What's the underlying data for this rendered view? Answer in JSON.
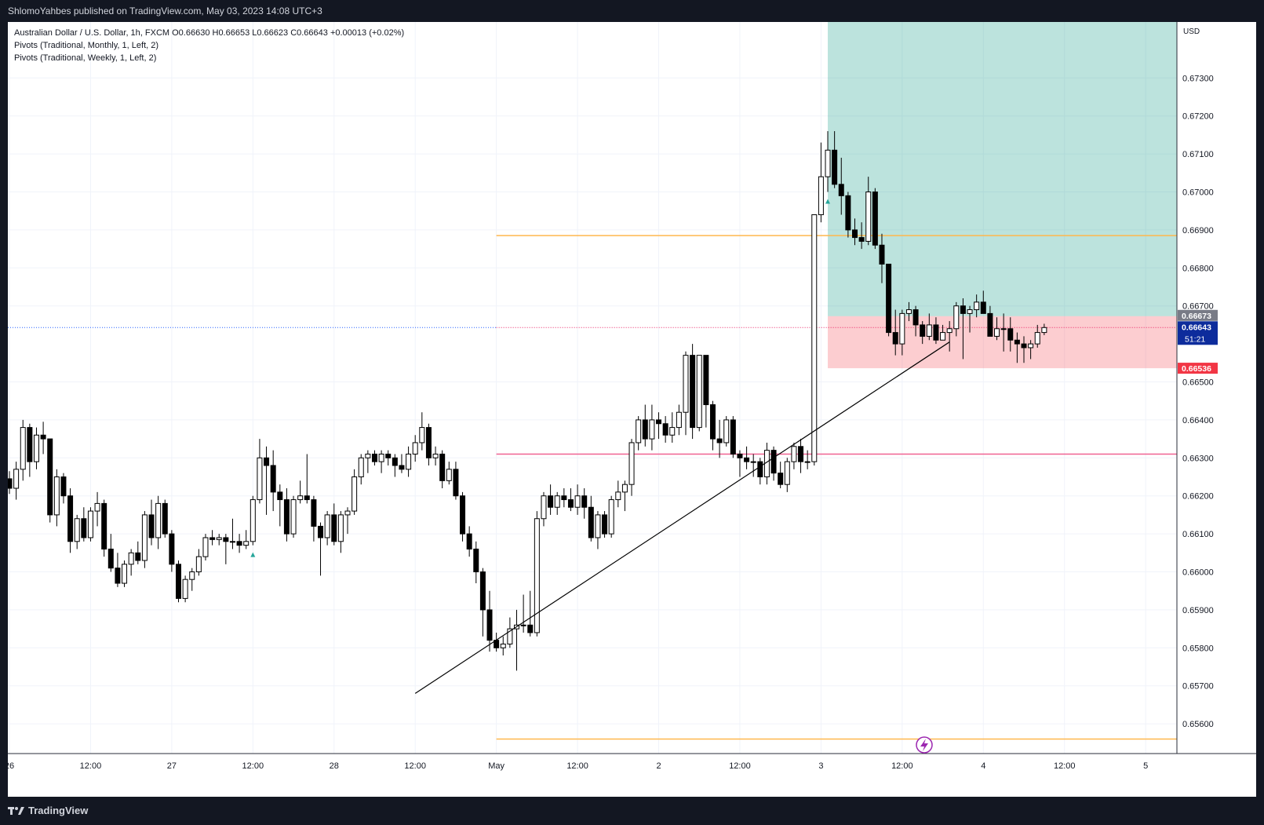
{
  "header": {
    "publisher": "ShlomoYahbes published on TradingView.com, May 03, 2023 14:08 UTC+3"
  },
  "legend": {
    "symbol_line": "Australian Dollar / U.S. Dollar, 1h, FXCM  O0.66630  H0.66653  L0.66623  C0.66643  +0.00013 (+0.02%)",
    "pivots_monthly": "Pivots (Traditional, Monthly, 1, Left, 2)",
    "pivots_weekly": "Pivots (Traditional, Weekly, 1, Left, 2)"
  },
  "footer": {
    "brand": "TradingView"
  },
  "chart_data": {
    "type": "candlestick",
    "symbol": "AUDUSD",
    "timeframe": "1h",
    "currency_label": "USD",
    "ylim": [
      0.6552,
      0.674
    ],
    "y_ticks": [
      "0.67300",
      "0.67200",
      "0.67100",
      "0.67000",
      "0.66900",
      "0.66800",
      "0.66700",
      "0.66500",
      "0.66400",
      "0.66300",
      "0.66200",
      "0.66100",
      "0.66000",
      "0.65900",
      "0.65800",
      "0.65700",
      "0.65600"
    ],
    "x_ticks": [
      "26",
      "12:00",
      "27",
      "12:00",
      "28",
      "12:00",
      "May",
      "12:00",
      "2",
      "12:00",
      "3",
      "12:00",
      "4",
      "12:00",
      "5"
    ],
    "price_labels": {
      "target_top": "0.66673",
      "current": "0.66643",
      "countdown": "51:21",
      "stop": "0.66536"
    },
    "levels": {
      "pivot_orange_upper": 0.66885,
      "pivot_pink": 0.6631,
      "pivot_orange_lower": 0.6556,
      "current_price": 0.66643
    },
    "position": {
      "type": "long",
      "entry": 0.66673,
      "stop": 0.66536,
      "target": 0.674,
      "start_index": 121,
      "end_index": 200
    },
    "trendline": {
      "from_index": 60,
      "from_price": 0.6568,
      "to_index": 139,
      "to_price": 0.66605
    },
    "signal_markers": [
      36,
      121
    ],
    "candles": [
      [
        0.66245,
        0.66265,
        0.66205,
        0.6622
      ],
      [
        0.6622,
        0.6629,
        0.6619,
        0.6627
      ],
      [
        0.6627,
        0.664,
        0.6624,
        0.6638
      ],
      [
        0.6638,
        0.6639,
        0.6625,
        0.6629
      ],
      [
        0.6629,
        0.6638,
        0.6627,
        0.6636
      ],
      [
        0.6636,
        0.66395,
        0.6631,
        0.6635
      ],
      [
        0.6635,
        0.6635,
        0.6613,
        0.6615
      ],
      [
        0.6615,
        0.6627,
        0.6612,
        0.6625
      ],
      [
        0.6625,
        0.6626,
        0.6618,
        0.662
      ],
      [
        0.662,
        0.6622,
        0.6605,
        0.6608
      ],
      [
        0.6608,
        0.6615,
        0.6606,
        0.6614
      ],
      [
        0.6614,
        0.6617,
        0.6608,
        0.6609
      ],
      [
        0.6609,
        0.6617,
        0.6608,
        0.6616
      ],
      [
        0.6616,
        0.6621,
        0.6612,
        0.6618
      ],
      [
        0.6618,
        0.6619,
        0.6604,
        0.6606
      ],
      [
        0.6606,
        0.661,
        0.66,
        0.6601
      ],
      [
        0.6601,
        0.6605,
        0.6596,
        0.6597
      ],
      [
        0.6597,
        0.6603,
        0.6596,
        0.6602
      ],
      [
        0.6602,
        0.6606,
        0.6599,
        0.6605
      ],
      [
        0.6605,
        0.6608,
        0.6602,
        0.6603
      ],
      [
        0.6603,
        0.6616,
        0.6601,
        0.6615
      ],
      [
        0.6615,
        0.6619,
        0.6607,
        0.6609
      ],
      [
        0.6609,
        0.662,
        0.6606,
        0.6618
      ],
      [
        0.6618,
        0.6619,
        0.6609,
        0.661
      ],
      [
        0.661,
        0.6611,
        0.66,
        0.6602
      ],
      [
        0.6602,
        0.6603,
        0.6592,
        0.6593
      ],
      [
        0.6593,
        0.6599,
        0.6592,
        0.6598
      ],
      [
        0.6598,
        0.6601,
        0.6595,
        0.66
      ],
      [
        0.66,
        0.6606,
        0.6599,
        0.6604
      ],
      [
        0.6604,
        0.661,
        0.6603,
        0.6609
      ],
      [
        0.6609,
        0.6611,
        0.6607,
        0.66085
      ],
      [
        0.66085,
        0.661,
        0.6607,
        0.6609
      ],
      [
        0.6609,
        0.661,
        0.6602,
        0.6608
      ],
      [
        0.6608,
        0.6614,
        0.6606,
        0.6608
      ],
      [
        0.6608,
        0.661,
        0.6605,
        0.6607
      ],
      [
        0.6607,
        0.6611,
        0.6606,
        0.6608
      ],
      [
        0.6608,
        0.662,
        0.6607,
        0.6619
      ],
      [
        0.6619,
        0.6635,
        0.6618,
        0.663
      ],
      [
        0.663,
        0.6633,
        0.6615,
        0.6628
      ],
      [
        0.6628,
        0.6632,
        0.6616,
        0.6621
      ],
      [
        0.6621,
        0.6623,
        0.6612,
        0.6619
      ],
      [
        0.6619,
        0.6622,
        0.6608,
        0.661
      ],
      [
        0.661,
        0.662,
        0.6609,
        0.6619
      ],
      [
        0.6619,
        0.6624,
        0.6618,
        0.662
      ],
      [
        0.662,
        0.6631,
        0.6618,
        0.6619
      ],
      [
        0.6619,
        0.662,
        0.6608,
        0.6612
      ],
      [
        0.6612,
        0.6613,
        0.6599,
        0.6609
      ],
      [
        0.6609,
        0.6616,
        0.6607,
        0.6615
      ],
      [
        0.6615,
        0.6618,
        0.6607,
        0.6608
      ],
      [
        0.6608,
        0.6616,
        0.6605,
        0.6615
      ],
      [
        0.6615,
        0.6617,
        0.661,
        0.6616
      ],
      [
        0.6616,
        0.6627,
        0.6615,
        0.6625
      ],
      [
        0.6625,
        0.6631,
        0.6623,
        0.663
      ],
      [
        0.663,
        0.6632,
        0.6626,
        0.6631
      ],
      [
        0.6631,
        0.6632,
        0.6628,
        0.6629
      ],
      [
        0.6629,
        0.6632,
        0.6626,
        0.6631
      ],
      [
        0.6631,
        0.6632,
        0.6628,
        0.663
      ],
      [
        0.663,
        0.6631,
        0.6625,
        0.6628
      ],
      [
        0.6628,
        0.6631,
        0.6626,
        0.6627
      ],
      [
        0.6627,
        0.6633,
        0.6625,
        0.6631
      ],
      [
        0.6631,
        0.6636,
        0.6629,
        0.6634
      ],
      [
        0.6634,
        0.6642,
        0.6632,
        0.6638
      ],
      [
        0.6638,
        0.6639,
        0.6628,
        0.663
      ],
      [
        0.663,
        0.6633,
        0.6628,
        0.6631
      ],
      [
        0.6631,
        0.6632,
        0.6622,
        0.6624
      ],
      [
        0.6624,
        0.6629,
        0.6623,
        0.6627
      ],
      [
        0.6627,
        0.6629,
        0.6619,
        0.662
      ],
      [
        0.662,
        0.6621,
        0.6608,
        0.661
      ],
      [
        0.661,
        0.6612,
        0.6604,
        0.6606
      ],
      [
        0.6606,
        0.6608,
        0.6597,
        0.66
      ],
      [
        0.66,
        0.6601,
        0.6583,
        0.659
      ],
      [
        0.659,
        0.6595,
        0.6579,
        0.6582
      ],
      [
        0.6582,
        0.6584,
        0.6579,
        0.658
      ],
      [
        0.658,
        0.6583,
        0.6578,
        0.6581
      ],
      [
        0.6581,
        0.6588,
        0.658,
        0.6585
      ],
      [
        0.6585,
        0.659,
        0.6574,
        0.6586
      ],
      [
        0.6586,
        0.6594,
        0.6584,
        0.6586
      ],
      [
        0.6586,
        0.6595,
        0.6583,
        0.6584
      ],
      [
        0.6584,
        0.6616,
        0.6583,
        0.6614
      ],
      [
        0.6614,
        0.6621,
        0.6612,
        0.662
      ],
      [
        0.662,
        0.6623,
        0.6615,
        0.6617
      ],
      [
        0.6617,
        0.6621,
        0.6615,
        0.662
      ],
      [
        0.662,
        0.6622,
        0.6617,
        0.6619
      ],
      [
        0.6619,
        0.6622,
        0.6616,
        0.6617
      ],
      [
        0.6617,
        0.6623,
        0.6615,
        0.662
      ],
      [
        0.662,
        0.6622,
        0.6614,
        0.6617
      ],
      [
        0.6617,
        0.662,
        0.6608,
        0.6609
      ],
      [
        0.6609,
        0.6616,
        0.6606,
        0.6615
      ],
      [
        0.6615,
        0.6616,
        0.6609,
        0.661
      ],
      [
        0.661,
        0.662,
        0.6609,
        0.6619
      ],
      [
        0.6619,
        0.6624,
        0.6617,
        0.6621
      ],
      [
        0.6621,
        0.6624,
        0.6616,
        0.6623
      ],
      [
        0.6623,
        0.6635,
        0.662,
        0.6634
      ],
      [
        0.6634,
        0.6641,
        0.6632,
        0.664
      ],
      [
        0.664,
        0.6644,
        0.6633,
        0.6635
      ],
      [
        0.6635,
        0.6644,
        0.6632,
        0.664
      ],
      [
        0.664,
        0.6642,
        0.6635,
        0.6639
      ],
      [
        0.6639,
        0.6641,
        0.6634,
        0.6636
      ],
      [
        0.6636,
        0.6642,
        0.6634,
        0.6638
      ],
      [
        0.6638,
        0.6644,
        0.6636,
        0.6642
      ],
      [
        0.6642,
        0.6658,
        0.6636,
        0.6657
      ],
      [
        0.6657,
        0.666,
        0.6635,
        0.6638
      ],
      [
        0.6638,
        0.6657,
        0.6637,
        0.6657
      ],
      [
        0.6657,
        0.6657,
        0.6638,
        0.6644
      ],
      [
        0.6644,
        0.6645,
        0.6632,
        0.6635
      ],
      [
        0.6635,
        0.664,
        0.663,
        0.6634
      ],
      [
        0.6634,
        0.6641,
        0.6633,
        0.664
      ],
      [
        0.664,
        0.6641,
        0.663,
        0.6631
      ],
      [
        0.6631,
        0.6632,
        0.6625,
        0.663
      ],
      [
        0.663,
        0.6633,
        0.6627,
        0.6629
      ],
      [
        0.6629,
        0.6631,
        0.6625,
        0.6629
      ],
      [
        0.6629,
        0.663,
        0.6623,
        0.6625
      ],
      [
        0.6625,
        0.6634,
        0.6623,
        0.6632
      ],
      [
        0.6632,
        0.6633,
        0.6624,
        0.6626
      ],
      [
        0.6626,
        0.6629,
        0.6622,
        0.6623
      ],
      [
        0.6623,
        0.663,
        0.6621,
        0.6629
      ],
      [
        0.6629,
        0.6634,
        0.6627,
        0.6633
      ],
      [
        0.6633,
        0.6635,
        0.6626,
        0.6629
      ],
      [
        0.6629,
        0.6632,
        0.6627,
        0.6629
      ],
      [
        0.6629,
        0.6694,
        0.6628,
        0.6694
      ],
      [
        0.6694,
        0.6713,
        0.6692,
        0.6704
      ],
      [
        0.6704,
        0.6716,
        0.67,
        0.6711
      ],
      [
        0.6711,
        0.6716,
        0.6701,
        0.6702
      ],
      [
        0.6702,
        0.6709,
        0.6694,
        0.6699
      ],
      [
        0.6699,
        0.67,
        0.6688,
        0.669
      ],
      [
        0.669,
        0.6693,
        0.6686,
        0.6688
      ],
      [
        0.6688,
        0.6692,
        0.6685,
        0.6687
      ],
      [
        0.6687,
        0.6704,
        0.6686,
        0.67
      ],
      [
        0.67,
        0.6701,
        0.6685,
        0.6686
      ],
      [
        0.6686,
        0.6689,
        0.6676,
        0.6681
      ],
      [
        0.6681,
        0.6681,
        0.6662,
        0.6663
      ],
      [
        0.6663,
        0.6669,
        0.6657,
        0.666
      ],
      [
        0.666,
        0.6669,
        0.6657,
        0.6668
      ],
      [
        0.6668,
        0.6671,
        0.6666,
        0.6669
      ],
      [
        0.6669,
        0.667,
        0.6662,
        0.6665
      ],
      [
        0.6665,
        0.6666,
        0.666,
        0.6662
      ],
      [
        0.6662,
        0.6668,
        0.6661,
        0.6665
      ],
      [
        0.6665,
        0.6667,
        0.666,
        0.6661
      ],
      [
        0.6661,
        0.6665,
        0.6661,
        0.6663
      ],
      [
        0.6663,
        0.6666,
        0.6658,
        0.6664
      ],
      [
        0.6664,
        0.6671,
        0.6662,
        0.667
      ],
      [
        0.667,
        0.6672,
        0.6656,
        0.6668
      ],
      [
        0.6668,
        0.667,
        0.6663,
        0.6669
      ],
      [
        0.6669,
        0.6673,
        0.6667,
        0.6671
      ],
      [
        0.6671,
        0.6674,
        0.6668,
        0.6668
      ],
      [
        0.6668,
        0.667,
        0.6662,
        0.6662
      ],
      [
        0.6662,
        0.6667,
        0.6661,
        0.6664
      ],
      [
        0.6664,
        0.6668,
        0.6658,
        0.6664
      ],
      [
        0.6664,
        0.6667,
        0.6658,
        0.6661
      ],
      [
        0.6661,
        0.6663,
        0.6655,
        0.666
      ],
      [
        0.666,
        0.6662,
        0.6655,
        0.6659
      ],
      [
        0.6659,
        0.6661,
        0.6656,
        0.666
      ],
      [
        0.666,
        0.6665,
        0.6659,
        0.6663
      ],
      [
        0.6663,
        0.66653,
        0.66623,
        0.66643
      ]
    ]
  }
}
